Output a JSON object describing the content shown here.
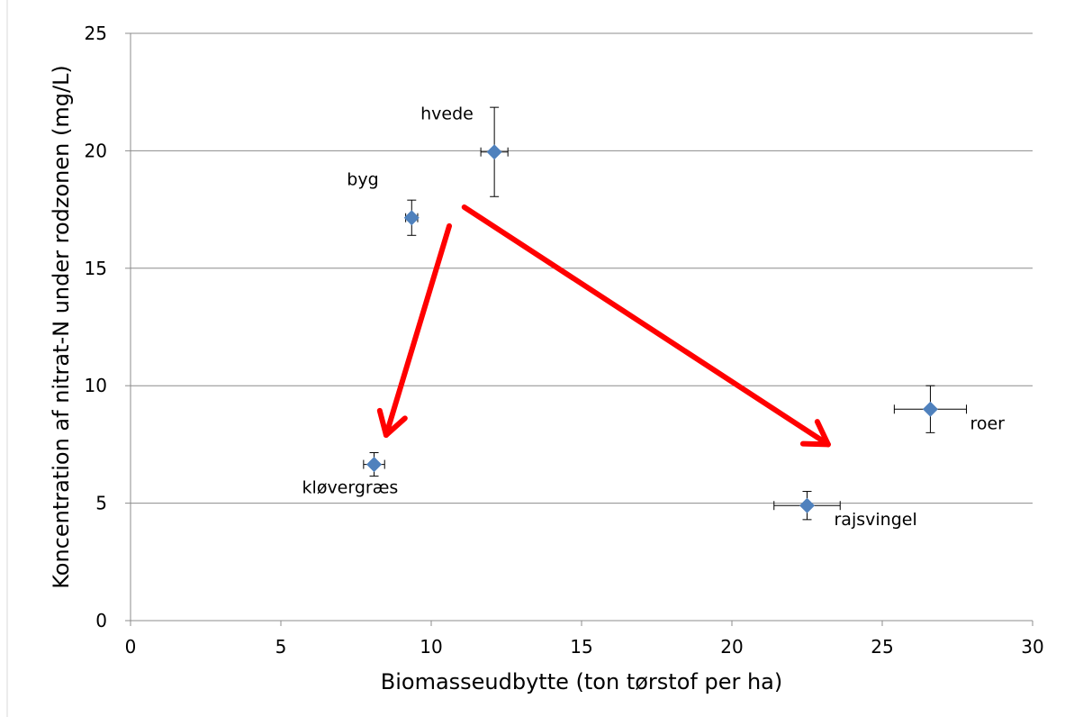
{
  "chart_data": {
    "type": "scatter",
    "xlabel": "Biomasseudbytte (ton tørstof per ha)",
    "ylabel": "Koncentration af nitrat-N under rodzonen (mg/L)",
    "xlim": [
      0,
      30
    ],
    "ylim": [
      0,
      25
    ],
    "xticks": [
      0,
      5,
      10,
      15,
      20,
      25,
      30
    ],
    "yticks": [
      0,
      5,
      10,
      15,
      20,
      25
    ],
    "grid": "horizontal",
    "marker": "diamond",
    "marker_color": "#4f81bd",
    "points": [
      {
        "label": "hvede",
        "x": 12.1,
        "y": 19.95,
        "xerr": 0.45,
        "yerr": 1.9
      },
      {
        "label": "byg",
        "x": 9.35,
        "y": 17.15,
        "xerr": 0.2,
        "yerr": 0.75
      },
      {
        "label": "kløvergræs",
        "x": 8.1,
        "y": 6.65,
        "xerr": 0.35,
        "yerr": 0.5
      },
      {
        "label": "rajsvingel",
        "x": 22.5,
        "y": 4.9,
        "xerr": 1.1,
        "yerr": 0.6
      },
      {
        "label": "roer",
        "x": 26.6,
        "y": 9.0,
        "xerr": 1.2,
        "yerr": 1.0
      }
    ],
    "arrows": [
      {
        "color": "#ff0000",
        "from": [
          10.6,
          16.8
        ],
        "to": [
          8.5,
          7.9
        ]
      },
      {
        "color": "#ff0000",
        "from": [
          11.1,
          17.6
        ],
        "to": [
          23.2,
          7.5
        ]
      }
    ]
  }
}
